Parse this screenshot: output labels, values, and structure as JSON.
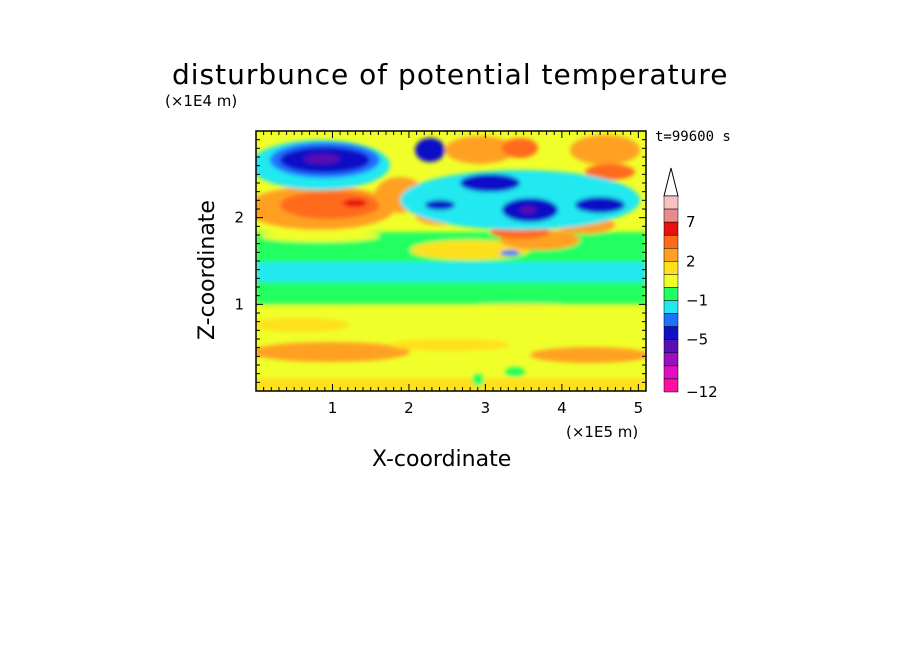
{
  "chart_data": {
    "type": "heatmap",
    "title": "disturbunce of potential temperature",
    "xlabel": "X-coordinate",
    "ylabel": "Z-coordinate",
    "x_unit": "(×1E5 m)",
    "y_unit": "(×1E4 m)",
    "time_label": "t=99600 s",
    "xlim": [
      0,
      5.1
    ],
    "ylim": [
      0,
      3.0
    ],
    "x_ticks": [
      "1",
      "2",
      "3",
      "4",
      "5"
    ],
    "y_ticks": [
      "1",
      "2"
    ],
    "colorbar": {
      "labels": [
        "7",
        "2",
        "−1",
        "−5",
        "−12"
      ],
      "label_values": [
        7,
        2,
        -1,
        -5,
        -12
      ],
      "levels_colors_top_to_bottom": [
        "#f5c2c2",
        "#ea8a8a",
        "#e81010",
        "#ff6a1a",
        "#ffa020",
        "#ffe01a",
        "#f0ff2a",
        "#20ff60",
        "#20e8f0",
        "#2070ff",
        "#1010c8",
        "#5a10b0",
        "#9a10c0",
        "#e010c0",
        "#ff10a0"
      ]
    },
    "features": [
      {
        "x": 1.0,
        "z": 2.65,
        "value": "min",
        "level": -12
      },
      {
        "x": 3.45,
        "z": 2.1,
        "value": "min",
        "level": -12
      },
      {
        "x": 1.3,
        "z": 2.15,
        "value": "max",
        "level": 7
      },
      {
        "x": 1.0,
        "z": 2.1,
        "value": "positive",
        "level": 2
      }
    ]
  }
}
